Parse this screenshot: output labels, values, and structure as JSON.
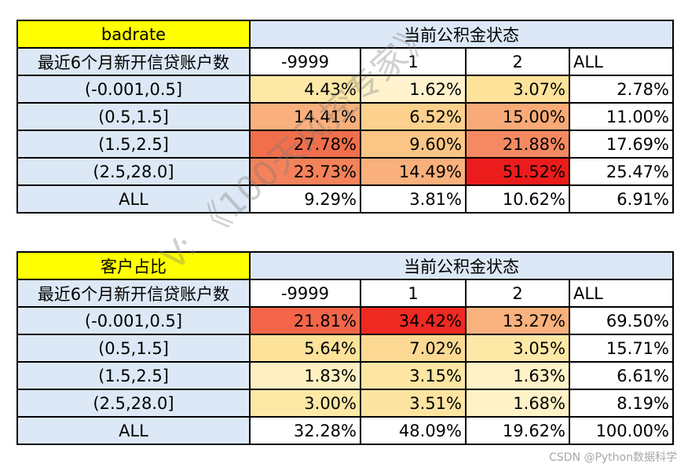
{
  "badrate_table": {
    "title": "badrate",
    "column_group": "当前公积金状态",
    "row_dim_label": "最近6个月新开信贷账户数",
    "columns": [
      "-9999",
      "1",
      "2",
      "ALL"
    ],
    "rows": [
      {
        "label": "(-0.001,0.5]",
        "cells": [
          "4.43%",
          "1.62%",
          "3.07%",
          "2.78%"
        ],
        "colors": [
          "#fde8a6",
          "#fff2cc",
          "#fde29a",
          "#ffffff"
        ]
      },
      {
        "label": "(0.5,1.5]",
        "cells": [
          "14.41%",
          "6.52%",
          "15.00%",
          "11.00%"
        ],
        "colors": [
          "#f9b07c",
          "#fcd18e",
          "#f8ab78",
          "#ffffff"
        ]
      },
      {
        "label": "(1.5,2.5]",
        "cells": [
          "27.78%",
          "9.60%",
          "21.88%",
          "17.69%"
        ],
        "colors": [
          "#f26f4c",
          "#fbc586",
          "#f58a62",
          "#ffffff"
        ]
      },
      {
        "label": "(2.5,28.0]",
        "cells": [
          "23.73%",
          "14.49%",
          "51.52%",
          "25.47%"
        ],
        "colors": [
          "#f4825a",
          "#f9b07c",
          "#ed1c1c",
          "#ffffff"
        ]
      },
      {
        "label": "ALL",
        "cells": [
          "9.29%",
          "3.81%",
          "10.62%",
          "6.91%"
        ],
        "colors": [
          "#ffffff",
          "#ffffff",
          "#ffffff",
          "#ffffff"
        ]
      }
    ]
  },
  "share_table": {
    "title": "客户占比",
    "column_group": "当前公积金状态",
    "row_dim_label": "最近6个月新开信贷账户数",
    "columns": [
      "-9999",
      "1",
      "2",
      "ALL"
    ],
    "rows": [
      {
        "label": "(-0.001,0.5]",
        "cells": [
          "21.81%",
          "34.42%",
          "13.27%",
          "69.50%"
        ],
        "colors": [
          "#f4654a",
          "#ee2a22",
          "#f9b27d",
          "#ffffff"
        ]
      },
      {
        "label": "(0.5,1.5]",
        "cells": [
          "5.64%",
          "7.02%",
          "3.05%",
          "15.71%"
        ],
        "colors": [
          "#fde29a",
          "#fcd993",
          "#fde8a6",
          "#ffffff"
        ]
      },
      {
        "label": "(1.5,2.5]",
        "cells": [
          "1.83%",
          "3.15%",
          "1.63%",
          "6.61%"
        ],
        "colors": [
          "#fff0c2",
          "#fde6a2",
          "#fff2c7",
          "#ffffff"
        ]
      },
      {
        "label": "(2.5,28.0]",
        "cells": [
          "3.00%",
          "3.51%",
          "1.68%",
          "8.19%"
        ],
        "colors": [
          "#fde8a6",
          "#fde4a0",
          "#fff2c7",
          "#ffffff"
        ]
      },
      {
        "label": "ALL",
        "cells": [
          "32.28%",
          "48.09%",
          "19.62%",
          "100.00%"
        ],
        "colors": [
          "#ffffff",
          "#ffffff",
          "#ffffff",
          "#ffffff"
        ]
      }
    ]
  },
  "watermark": "V: 《100天风控专家》",
  "credit": "CSDN @Python数据科学"
}
